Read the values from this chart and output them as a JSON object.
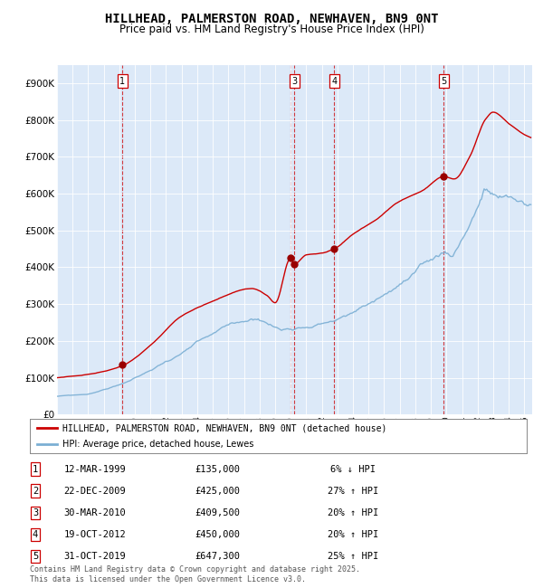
{
  "title": "HILLHEAD, PALMERSTON ROAD, NEWHAVEN, BN9 0NT",
  "subtitle": "Price paid vs. HM Land Registry's House Price Index (HPI)",
  "title_fontsize": 10,
  "subtitle_fontsize": 8.5,
  "background_color": "#dce9f8",
  "hpi_line_color": "#7bafd4",
  "price_line_color": "#cc0000",
  "marker_color": "#990000",
  "vline_color": "#cc0000",
  "ylim": [
    0,
    950000
  ],
  "yticks": [
    0,
    100000,
    200000,
    300000,
    400000,
    500000,
    600000,
    700000,
    800000,
    900000
  ],
  "ytick_labels": [
    "£0",
    "£100K",
    "£200K",
    "£300K",
    "£400K",
    "£500K",
    "£600K",
    "£700K",
    "£800K",
    "£900K"
  ],
  "sale_dates_x": [
    1999.19,
    2009.98,
    2010.24,
    2012.8,
    2019.83
  ],
  "sale_prices_y": [
    135000,
    425000,
    409500,
    450000,
    647300
  ],
  "sale_labels": [
    "1",
    "2",
    "3",
    "4",
    "5"
  ],
  "annotations_visible": [
    true,
    false,
    true,
    true,
    true
  ],
  "legend_line1": "HILLHEAD, PALMERSTON ROAD, NEWHAVEN, BN9 0NT (detached house)",
  "legend_line2": "HPI: Average price, detached house, Lewes",
  "table_data": [
    [
      "1",
      "12-MAR-1999",
      "£135,000",
      "6% ↓ HPI"
    ],
    [
      "2",
      "22-DEC-2009",
      "£425,000",
      "27% ↑ HPI"
    ],
    [
      "3",
      "30-MAR-2010",
      "£409,500",
      "20% ↑ HPI"
    ],
    [
      "4",
      "19-OCT-2012",
      "£450,000",
      "20% ↑ HPI"
    ],
    [
      "5",
      "31-OCT-2019",
      "£647,300",
      "25% ↑ HPI"
    ]
  ],
  "footer": "Contains HM Land Registry data © Crown copyright and database right 2025.\nThis data is licensed under the Open Government Licence v3.0.",
  "xmin": 1995.0,
  "xmax": 2025.5
}
